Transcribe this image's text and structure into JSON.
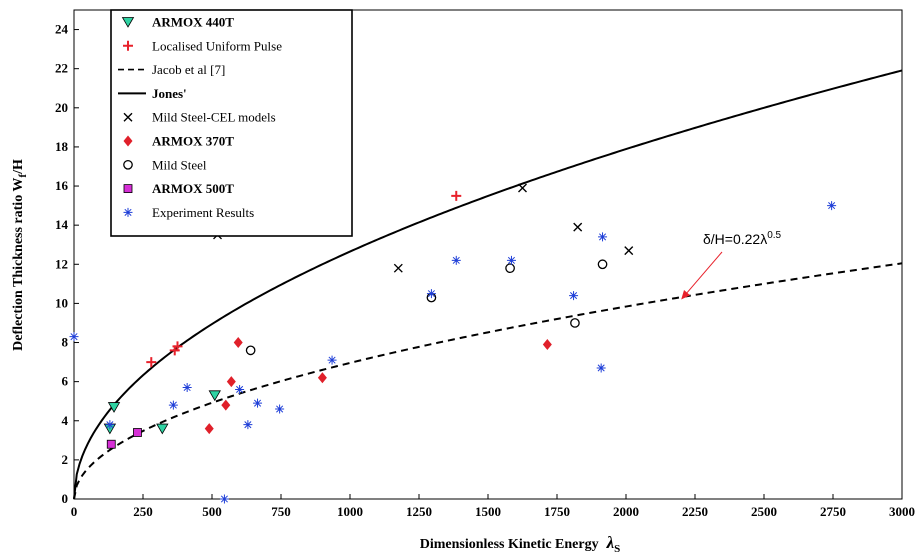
{
  "chart_data": {
    "type": "scatter",
    "xlabel": "Dimensionless Kinetic Energy",
    "xlabel_symbol": "λ",
    "xlabel_sub": "S",
    "ylabel": "Deflection Thickness ratio W",
    "ylabel_sub": "f",
    "ylabel_tail": "/H",
    "xlim": [
      0,
      3000
    ],
    "ylim": [
      0,
      25
    ],
    "xticks": [
      0,
      250,
      500,
      750,
      1000,
      1250,
      1500,
      1750,
      2000,
      2250,
      2500,
      2750,
      3000
    ],
    "yticks": [
      0,
      2,
      4,
      6,
      8,
      10,
      12,
      14,
      16,
      18,
      20,
      22,
      24
    ],
    "legend_position": "top-left",
    "series": [
      {
        "name": "ARMOX 440T",
        "bold": true,
        "marker": "triangle-down",
        "color": "#2fd3a3",
        "points": [
          [
            130,
            3.6
          ],
          [
            145,
            4.7
          ],
          [
            320,
            3.6
          ],
          [
            510,
            5.3
          ]
        ]
      },
      {
        "name": "Localised Uniform Pulse",
        "bold": false,
        "marker": "plus",
        "color": "#e8212b",
        "points": [
          [
            280,
            7.0
          ],
          [
            365,
            7.6
          ],
          [
            375,
            7.8
          ],
          [
            1385,
            15.5
          ]
        ]
      },
      {
        "name": "Jacob et al [7]",
        "bold": false,
        "marker": "dashed-line",
        "color": "#000000"
      },
      {
        "name": "Jones'",
        "bold": true,
        "marker": "solid-line",
        "color": "#000000"
      },
      {
        "name": "Mild Steel-CEL models",
        "bold": false,
        "marker": "x",
        "color": "#000000",
        "points": [
          [
            520,
            13.5
          ],
          [
            1175,
            11.8
          ],
          [
            1625,
            15.9
          ],
          [
            1825,
            13.9
          ],
          [
            2010,
            12.7
          ]
        ]
      },
      {
        "name": "ARMOX 370T",
        "bold": true,
        "marker": "diamond",
        "color": "#e0202a",
        "points": [
          [
            490,
            3.6
          ],
          [
            550,
            4.8
          ],
          [
            570,
            6.0
          ],
          [
            595,
            8.0
          ],
          [
            900,
            6.2
          ],
          [
            1715,
            7.9
          ]
        ]
      },
      {
        "name": "Mild Steel",
        "bold": false,
        "marker": "circle",
        "color": "#000000",
        "points": [
          [
            640,
            7.6
          ],
          [
            1295,
            10.3
          ],
          [
            1580,
            11.8
          ],
          [
            1815,
            9.0
          ],
          [
            1915,
            12.0
          ]
        ]
      },
      {
        "name": "ARMOX 500T",
        "bold": true,
        "marker": "square",
        "color": "#d62fd6",
        "points": [
          [
            135,
            2.8
          ],
          [
            230,
            3.4
          ]
        ]
      },
      {
        "name": "Experiment Results",
        "bold": false,
        "marker": "asterisk",
        "color": "#1f3fd8",
        "points": [
          [
            0,
            8.3
          ],
          [
            130,
            3.8
          ],
          [
            360,
            4.8
          ],
          [
            410,
            5.7
          ],
          [
            545,
            0.0
          ],
          [
            600,
            5.6
          ],
          [
            630,
            3.8
          ],
          [
            665,
            4.9
          ],
          [
            745,
            4.6
          ],
          [
            935,
            7.1
          ],
          [
            1295,
            10.5
          ],
          [
            1385,
            12.2
          ],
          [
            1585,
            12.2
          ],
          [
            1810,
            10.4
          ],
          [
            1910,
            6.7
          ],
          [
            1915,
            13.4
          ],
          [
            2745,
            15.0
          ]
        ]
      }
    ],
    "curves": {
      "jones": {
        "label": "Jones'",
        "coef": 0.4,
        "exp": 0.5
      },
      "jacob": {
        "label": "Jacob et al [7]",
        "coef": 0.22,
        "exp": 0.5
      }
    },
    "annotation": {
      "text_prefix": "δ/H=0.22λ",
      "text_sup": "0.5",
      "arrow_target": [
        2200,
        10.2
      ],
      "color": "#e8212b"
    }
  }
}
